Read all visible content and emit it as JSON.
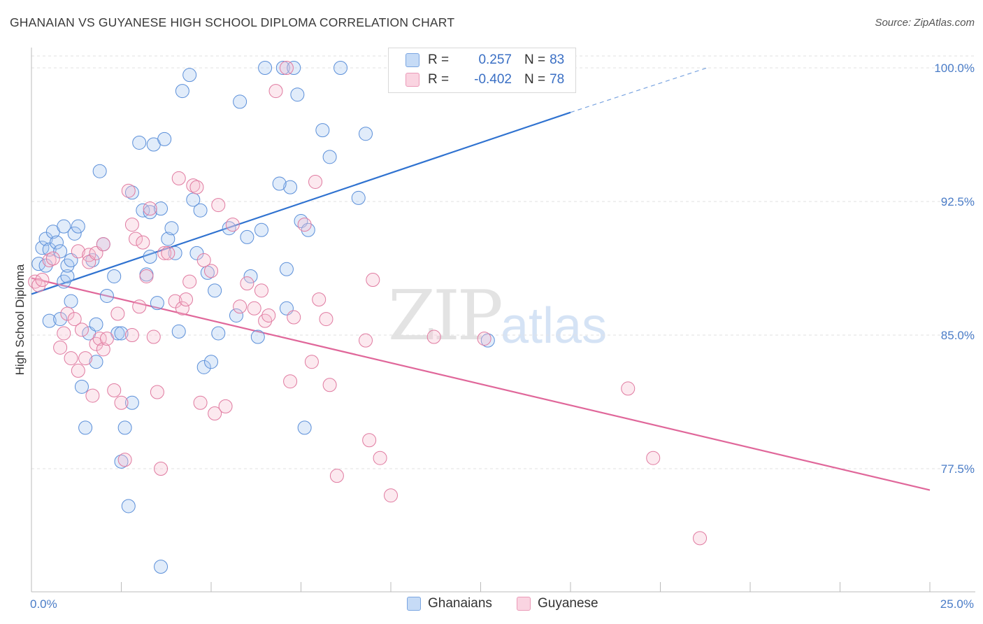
{
  "title": "GHANAIAN VS GUYANESE HIGH SCHOOL DIPLOMA CORRELATION CHART",
  "source": "Source: ZipAtlas.com",
  "watermark": {
    "zip": "ZIP",
    "atlas": "atlas"
  },
  "legend": {
    "rows": [
      {
        "r_label": "R = ",
        "r_value": "0.257",
        "n_label": "N = ",
        "n_value": "83",
        "color": "#a9c8f0",
        "border": "#5b8fd9"
      },
      {
        "r_label": "R = ",
        "r_value": "-0.402",
        "n_label": "N = ",
        "n_value": "78",
        "color": "#f7c0d2",
        "border": "#e07aa0"
      }
    ]
  },
  "bottom_legend": [
    "Ghanaians",
    "Guyanese"
  ],
  "chart_data": {
    "type": "scatter",
    "title": "GHANAIAN VS GUYANESE HIGH SCHOOL DIPLOMA CORRELATION CHART",
    "xlabel": "",
    "ylabel": "High School Diploma",
    "xlim": [
      0,
      25
    ],
    "ylim": [
      71,
      101
    ],
    "x_tick_labels": [
      "0.0%",
      "25.0%"
    ],
    "y_ticks": [
      77.5,
      85.0,
      92.5,
      100.0
    ],
    "y_tick_labels": [
      "77.5%",
      "85.0%",
      "92.5%",
      "100.0%"
    ],
    "series": [
      {
        "name": "Ghanaians",
        "color": "#a9c8f0",
        "stroke": "#5b8fd9",
        "trend": {
          "x0": 0,
          "y0": 87.3,
          "x1": 15,
          "y1": 97.5,
          "dash_to_x": 18.8,
          "dash_to_y": 100
        },
        "points": [
          [
            0.2,
            89.0
          ],
          [
            0.3,
            89.9
          ],
          [
            0.4,
            88.9
          ],
          [
            0.4,
            90.4
          ],
          [
            0.5,
            85.8
          ],
          [
            0.5,
            89.8
          ],
          [
            0.6,
            90.8
          ],
          [
            0.7,
            90.2
          ],
          [
            0.8,
            89.7
          ],
          [
            0.8,
            85.9
          ],
          [
            0.9,
            88.0
          ],
          [
            0.9,
            91.1
          ],
          [
            1.0,
            88.3
          ],
          [
            1.0,
            88.9
          ],
          [
            1.1,
            86.9
          ],
          [
            1.2,
            90.7
          ],
          [
            1.3,
            91.1
          ],
          [
            1.1,
            89.2
          ],
          [
            1.4,
            82.1
          ],
          [
            1.5,
            79.8
          ],
          [
            1.6,
            85.1
          ],
          [
            1.7,
            89.2
          ],
          [
            1.8,
            85.6
          ],
          [
            1.8,
            83.5
          ],
          [
            1.9,
            94.2
          ],
          [
            2.0,
            90.1
          ],
          [
            2.1,
            87.2
          ],
          [
            2.3,
            88.3
          ],
          [
            2.4,
            85.1
          ],
          [
            2.5,
            85.1
          ],
          [
            2.5,
            77.9
          ],
          [
            2.6,
            79.8
          ],
          [
            2.7,
            75.4
          ],
          [
            2.8,
            93.0
          ],
          [
            2.8,
            81.2
          ],
          [
            3.0,
            95.8
          ],
          [
            3.1,
            92.0
          ],
          [
            3.2,
            88.4
          ],
          [
            3.3,
            89.4
          ],
          [
            3.3,
            91.9
          ],
          [
            3.4,
            95.7
          ],
          [
            3.5,
            86.8
          ],
          [
            3.6,
            92.1
          ],
          [
            3.6,
            72.0
          ],
          [
            3.7,
            96.0
          ],
          [
            3.8,
            90.4
          ],
          [
            3.9,
            91.0
          ],
          [
            4.0,
            89.6
          ],
          [
            4.1,
            85.2
          ],
          [
            4.2,
            98.7
          ],
          [
            4.4,
            99.6
          ],
          [
            4.5,
            92.6
          ],
          [
            4.6,
            89.6
          ],
          [
            4.7,
            92.0
          ],
          [
            4.8,
            83.2
          ],
          [
            4.9,
            88.5
          ],
          [
            5.0,
            83.5
          ],
          [
            5.1,
            87.5
          ],
          [
            5.2,
            85.1
          ],
          [
            5.5,
            91.0
          ],
          [
            5.7,
            86.1
          ],
          [
            5.8,
            98.1
          ],
          [
            6.0,
            90.5
          ],
          [
            6.1,
            88.3
          ],
          [
            6.3,
            84.9
          ],
          [
            6.4,
            90.9
          ],
          [
            6.5,
            100.0
          ],
          [
            7.0,
            100.0
          ],
          [
            7.1,
            86.5
          ],
          [
            7.1,
            88.7
          ],
          [
            7.2,
            93.3
          ],
          [
            7.3,
            100.0
          ],
          [
            7.4,
            98.5
          ],
          [
            7.5,
            91.4
          ],
          [
            7.6,
            79.8
          ],
          [
            7.7,
            90.9
          ],
          [
            8.3,
            95.0
          ],
          [
            8.6,
            100.0
          ],
          [
            9.1,
            92.7
          ],
          [
            9.3,
            96.3
          ],
          [
            12.7,
            84.7
          ],
          [
            6.9,
            93.5
          ],
          [
            8.1,
            96.5
          ]
        ]
      },
      {
        "name": "Guyanese",
        "color": "#f7c0d2",
        "stroke": "#e07aa0",
        "trend": {
          "x0": 0,
          "y0": 88.2,
          "x1": 25,
          "y1": 76.3
        },
        "points": [
          [
            0.1,
            88.0
          ],
          [
            0.2,
            87.8
          ],
          [
            0.3,
            88.1
          ],
          [
            0.5,
            89.2
          ],
          [
            0.6,
            89.3
          ],
          [
            0.8,
            84.3
          ],
          [
            0.9,
            85.1
          ],
          [
            1.0,
            86.2
          ],
          [
            1.1,
            83.7
          ],
          [
            1.2,
            85.9
          ],
          [
            1.3,
            89.7
          ],
          [
            1.3,
            83.0
          ],
          [
            1.4,
            85.3
          ],
          [
            1.5,
            83.7
          ],
          [
            1.6,
            89.5
          ],
          [
            1.6,
            89.1
          ],
          [
            1.7,
            81.6
          ],
          [
            1.8,
            89.6
          ],
          [
            1.8,
            84.5
          ],
          [
            1.9,
            84.8
          ],
          [
            2.0,
            90.1
          ],
          [
            2.0,
            84.2
          ],
          [
            2.1,
            84.8
          ],
          [
            2.3,
            81.9
          ],
          [
            2.4,
            86.2
          ],
          [
            2.5,
            81.2
          ],
          [
            2.6,
            78.0
          ],
          [
            2.7,
            93.1
          ],
          [
            2.8,
            91.2
          ],
          [
            2.8,
            85.0
          ],
          [
            2.9,
            90.4
          ],
          [
            3.0,
            86.6
          ],
          [
            3.1,
            90.2
          ],
          [
            3.2,
            88.3
          ],
          [
            3.3,
            92.1
          ],
          [
            3.4,
            84.9
          ],
          [
            3.5,
            81.8
          ],
          [
            3.6,
            77.5
          ],
          [
            3.7,
            89.6
          ],
          [
            3.8,
            89.6
          ],
          [
            4.0,
            86.9
          ],
          [
            4.1,
            93.8
          ],
          [
            4.2,
            86.5
          ],
          [
            4.3,
            87.0
          ],
          [
            4.4,
            88.0
          ],
          [
            4.5,
            93.4
          ],
          [
            4.6,
            93.3
          ],
          [
            4.7,
            81.2
          ],
          [
            4.8,
            89.2
          ],
          [
            5.0,
            88.6
          ],
          [
            5.1,
            80.6
          ],
          [
            5.2,
            92.3
          ],
          [
            5.4,
            81.0
          ],
          [
            5.6,
            91.2
          ],
          [
            5.8,
            86.6
          ],
          [
            6.0,
            87.9
          ],
          [
            6.2,
            86.5
          ],
          [
            6.4,
            87.5
          ],
          [
            6.5,
            85.8
          ],
          [
            6.6,
            86.1
          ],
          [
            6.8,
            98.7
          ],
          [
            7.1,
            100.0
          ],
          [
            7.2,
            82.4
          ],
          [
            7.3,
            86.0
          ],
          [
            7.6,
            91.2
          ],
          [
            7.8,
            83.5
          ],
          [
            7.9,
            93.6
          ],
          [
            8.0,
            87.0
          ],
          [
            8.2,
            85.9
          ],
          [
            8.3,
            82.2
          ],
          [
            8.5,
            77.1
          ],
          [
            9.3,
            84.7
          ],
          [
            9.4,
            79.1
          ],
          [
            9.5,
            88.1
          ],
          [
            9.7,
            78.1
          ],
          [
            10.0,
            76.0
          ],
          [
            11.2,
            84.9
          ],
          [
            17.3,
            78.1
          ]
        ],
        "extra_points": [
          [
            12.6,
            84.8
          ],
          [
            16.6,
            82.0
          ],
          [
            18.6,
            73.6
          ]
        ]
      }
    ]
  }
}
